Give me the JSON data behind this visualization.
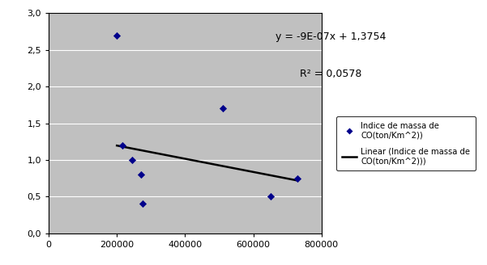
{
  "scatter_x": [
    200000,
    215000,
    245000,
    270000,
    275000,
    510000,
    650000,
    730000
  ],
  "scatter_y": [
    2.7,
    1.2,
    1.0,
    0.8,
    0.4,
    1.7,
    0.5,
    0.75
  ],
  "line_x": [
    200000,
    730000
  ],
  "line_slope": -9e-07,
  "line_intercept": 1.3754,
  "xlim": [
    0,
    800000
  ],
  "ylim": [
    0.0,
    3.0
  ],
  "xticks": [
    0,
    200000,
    400000,
    600000,
    800000
  ],
  "yticks": [
    0.0,
    0.5,
    1.0,
    1.5,
    2.0,
    2.5,
    3.0
  ],
  "ytick_labels": [
    "0,0",
    "0,5",
    "1,0",
    "1,5",
    "2,0",
    "2,5",
    "3,0"
  ],
  "xtick_labels": [
    "0",
    "200000",
    "400000",
    "600000",
    "800000"
  ],
  "scatter_color": "#00008B",
  "line_color": "#000000",
  "plot_bg_color": "#C0C0C0",
  "fig_bg_color": "#FFFFFF",
  "equation_text": "y = -9E-07x + 1,3754",
  "r2_text": "R2 = 0,0578",
  "legend_scatter": "Indice de massa de\nCO(ton/Km^2))",
  "legend_line": "Linear (Indice de massa de\nCO(ton/Km^2)))",
  "tick_label_fontsize": 8,
  "annotation_fontsize": 9
}
